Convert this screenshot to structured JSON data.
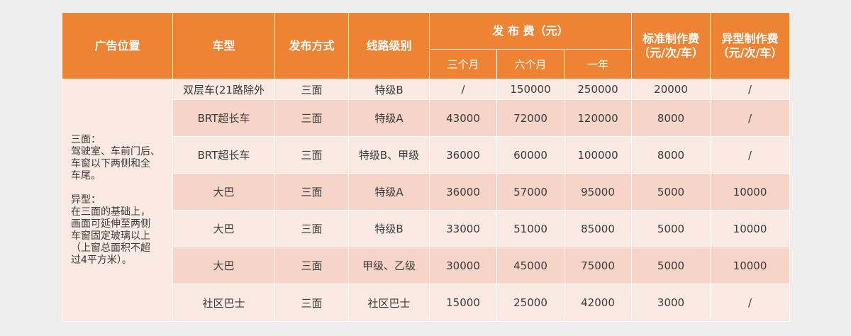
{
  "headers": {
    "position": "广告位置",
    "vehicle": "车型",
    "method": "发布方式",
    "route_level": "线路级别",
    "fee_group": "发 布 费（元）",
    "three_months": "三个月",
    "six_months": "六个月",
    "one_year": "一年",
    "standard_fee": "标准制作费\n（元/次/车）",
    "special_fee": "异型制作费\n（元/次/车）"
  },
  "position_description": "三面：\n驾驶室、车前门后、\n车窗以下两侧和全\n车尾。\n\n异型：\n在三面的基础上，\n画面可延伸至两侧\n车窗固定玻璃以上\n（上窗总面积不超\n过4平方米）。",
  "rows": [
    {
      "vehicle": "双层车(21路除外",
      "method": "三面",
      "level": "特级B",
      "m3": "/",
      "m6": "150000",
      "y1": "250000",
      "standard": "20000",
      "special": "/"
    },
    {
      "vehicle": "BRT超长车",
      "method": "三面",
      "level": "特级A",
      "m3": "43000",
      "m6": "72000",
      "y1": "120000",
      "standard": "8000",
      "special": "/"
    },
    {
      "vehicle": "BRT超长车",
      "method": "三面",
      "level": "特级B、甲级",
      "m3": "36000",
      "m6": "60000",
      "y1": "100000",
      "standard": "8000",
      "special": "/"
    },
    {
      "vehicle": "大巴",
      "method": "三面",
      "level": "特级A",
      "m3": "36000",
      "m6": "57000",
      "y1": "95000",
      "standard": "5000",
      "special": "10000"
    },
    {
      "vehicle": "大巴",
      "method": "三面",
      "level": "特级B",
      "m3": "33000",
      "m6": "51000",
      "y1": "85000",
      "standard": "5000",
      "special": "10000"
    },
    {
      "vehicle": "大巴",
      "method": "三面",
      "level": "甲级、乙级",
      "m3": "30000",
      "m6": "45000",
      "y1": "75000",
      "standard": "5000",
      "special": "10000"
    },
    {
      "vehicle": "社区巴士",
      "method": "三面",
      "level": "社区巴士",
      "m3": "15000",
      "m6": "25000",
      "y1": "42000",
      "standard": "3000",
      "special": "/"
    }
  ],
  "colors": {
    "header_bg": "#ef8334",
    "row_light": "#fbe9e3",
    "row_dark": "#f6d5c8"
  }
}
